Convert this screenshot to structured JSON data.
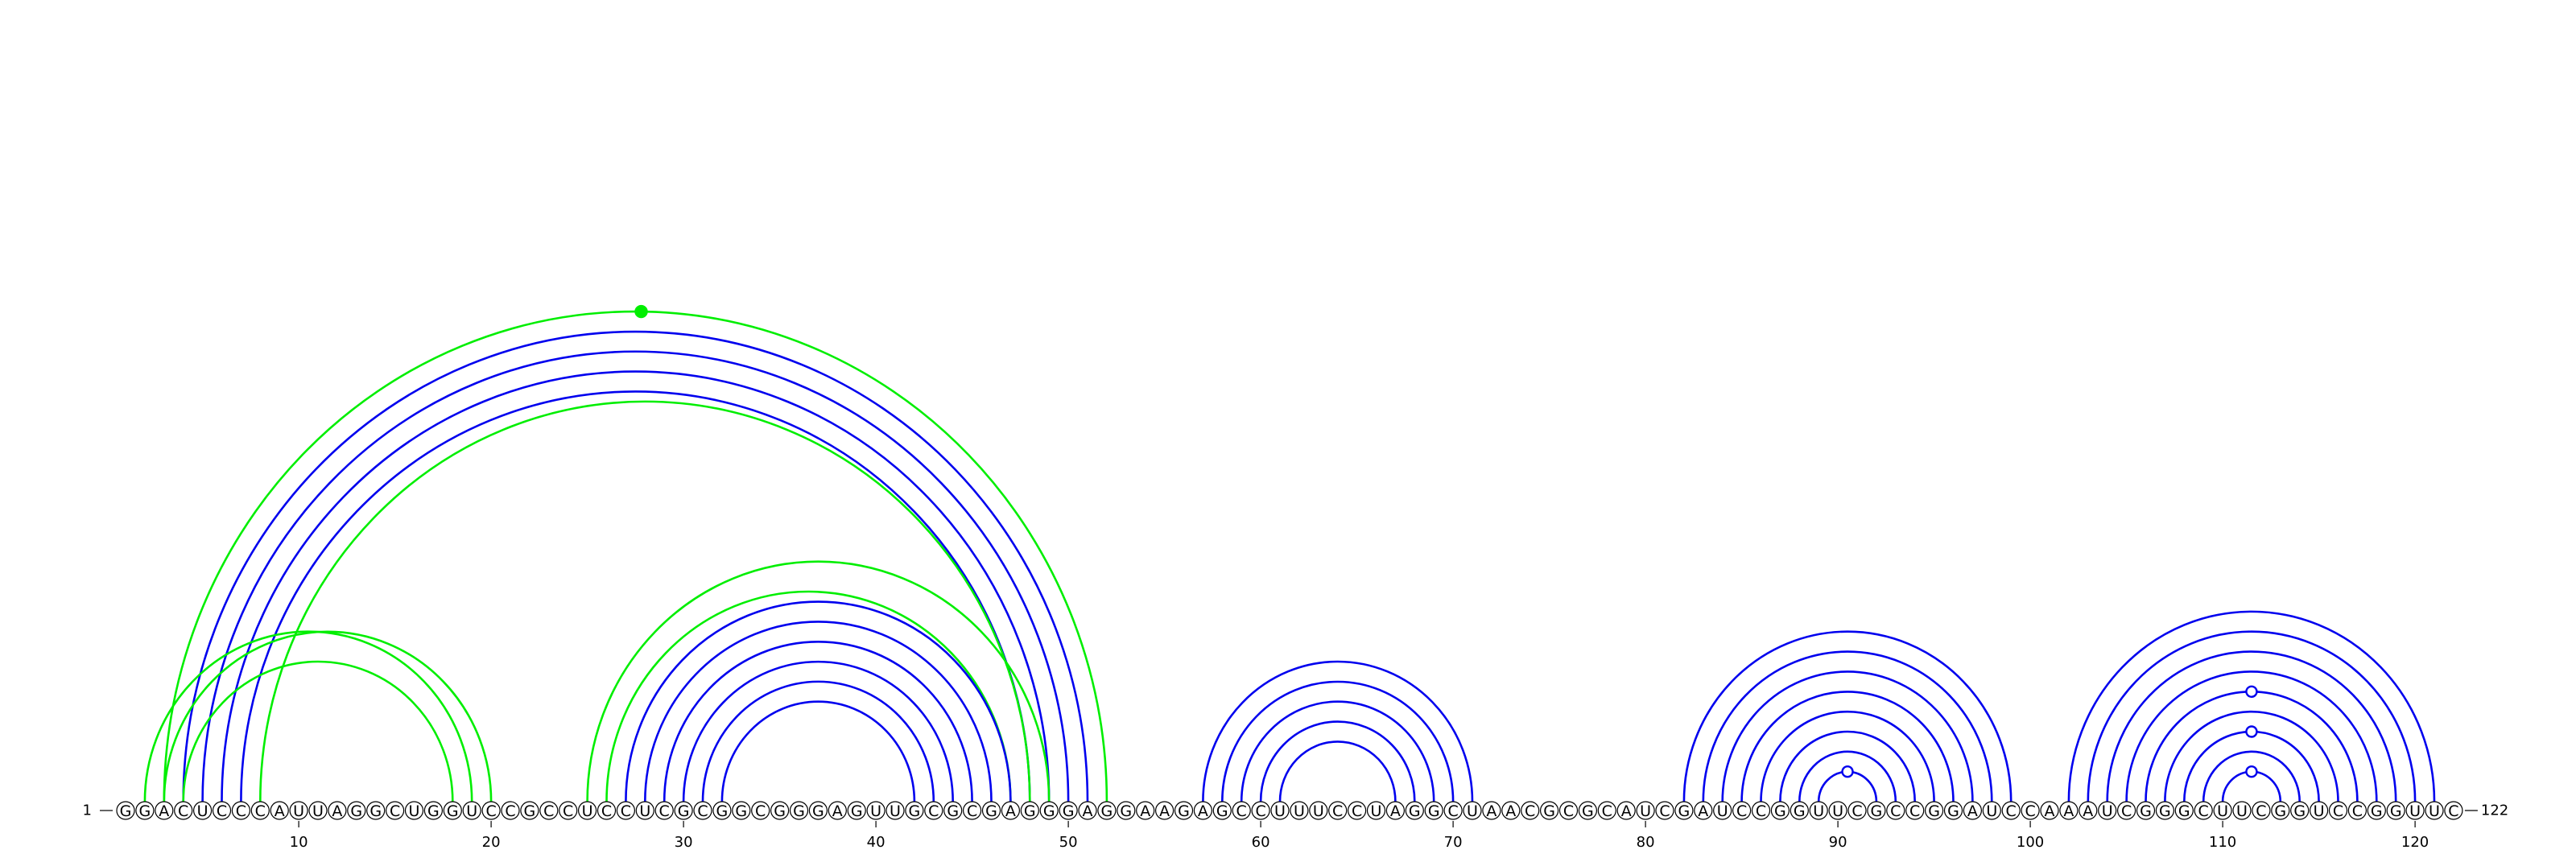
{
  "sequence": "GGACUCCCAUUAGGCUGGUCCGCCUCCUCGCGGCGGGAGUUGCGCGAGGGAGGAAGAGCCUUUCCUAGGCUAACGCGCAUCGAUCCGGUUCGCCGGAUCCAAAUCGGGCUUCGGUCCGGUUC",
  "start_label": "1",
  "end_label": "122",
  "ticks": [
    10,
    20,
    30,
    40,
    50,
    60,
    70,
    80,
    90,
    100,
    110,
    120
  ],
  "colors": {
    "blue": "#0000ee",
    "green": "#00ee00"
  },
  "arcs": [
    {
      "i": 3,
      "j": 52,
      "color": "green"
    },
    {
      "i": 4,
      "j": 51,
      "color": "blue"
    },
    {
      "i": 5,
      "j": 50,
      "color": "blue"
    },
    {
      "i": 6,
      "j": 49,
      "color": "blue"
    },
    {
      "i": 7,
      "j": 48,
      "color": "blue"
    },
    {
      "i": 8,
      "j": 48,
      "color": "green"
    },
    {
      "i": 2,
      "j": 19,
      "color": "green"
    },
    {
      "i": 3,
      "j": 20,
      "color": "green"
    },
    {
      "i": 4,
      "j": 18,
      "color": "green"
    },
    {
      "i": 25,
      "j": 49,
      "color": "green"
    },
    {
      "i": 26,
      "j": 47,
      "color": "green"
    },
    {
      "i": 27,
      "j": 47,
      "color": "blue"
    },
    {
      "i": 28,
      "j": 46,
      "color": "blue"
    },
    {
      "i": 29,
      "j": 45,
      "color": "blue"
    },
    {
      "i": 30,
      "j": 44,
      "color": "blue"
    },
    {
      "i": 31,
      "j": 43,
      "color": "blue"
    },
    {
      "i": 32,
      "j": 42,
      "color": "blue"
    },
    {
      "i": 57,
      "j": 71,
      "color": "blue"
    },
    {
      "i": 58,
      "j": 70,
      "color": "blue"
    },
    {
      "i": 59,
      "j": 69,
      "color": "blue"
    },
    {
      "i": 60,
      "j": 68,
      "color": "blue"
    },
    {
      "i": 61,
      "j": 67,
      "color": "blue"
    },
    {
      "i": 82,
      "j": 99,
      "color": "blue"
    },
    {
      "i": 83,
      "j": 98,
      "color": "blue"
    },
    {
      "i": 84,
      "j": 97,
      "color": "blue"
    },
    {
      "i": 85,
      "j": 96,
      "color": "blue"
    },
    {
      "i": 86,
      "j": 95,
      "color": "blue"
    },
    {
      "i": 87,
      "j": 94,
      "color": "blue"
    },
    {
      "i": 88,
      "j": 93,
      "color": "blue"
    },
    {
      "i": 89,
      "j": 92,
      "color": "blue"
    },
    {
      "i": 102,
      "j": 121,
      "color": "blue"
    },
    {
      "i": 103,
      "j": 120,
      "color": "blue"
    },
    {
      "i": 104,
      "j": 119,
      "color": "blue"
    },
    {
      "i": 105,
      "j": 118,
      "color": "blue"
    },
    {
      "i": 106,
      "j": 117,
      "color": "blue"
    },
    {
      "i": 107,
      "j": 116,
      "color": "blue"
    },
    {
      "i": 108,
      "j": 115,
      "color": "blue"
    },
    {
      "i": 109,
      "j": 114,
      "color": "blue"
    },
    {
      "i": 110,
      "j": 113,
      "color": "blue"
    }
  ],
  "markers": [
    {
      "x": 27.8,
      "color": "green",
      "filled": true
    },
    {
      "x": 90.5,
      "color": "blue",
      "filled": false
    },
    {
      "x": 111.5,
      "color": "blue",
      "filled": false
    },
    {
      "x": 111.5,
      "color": "blue",
      "filled": false
    },
    {
      "x": 111.5,
      "color": "blue",
      "filled": false
    }
  ]
}
